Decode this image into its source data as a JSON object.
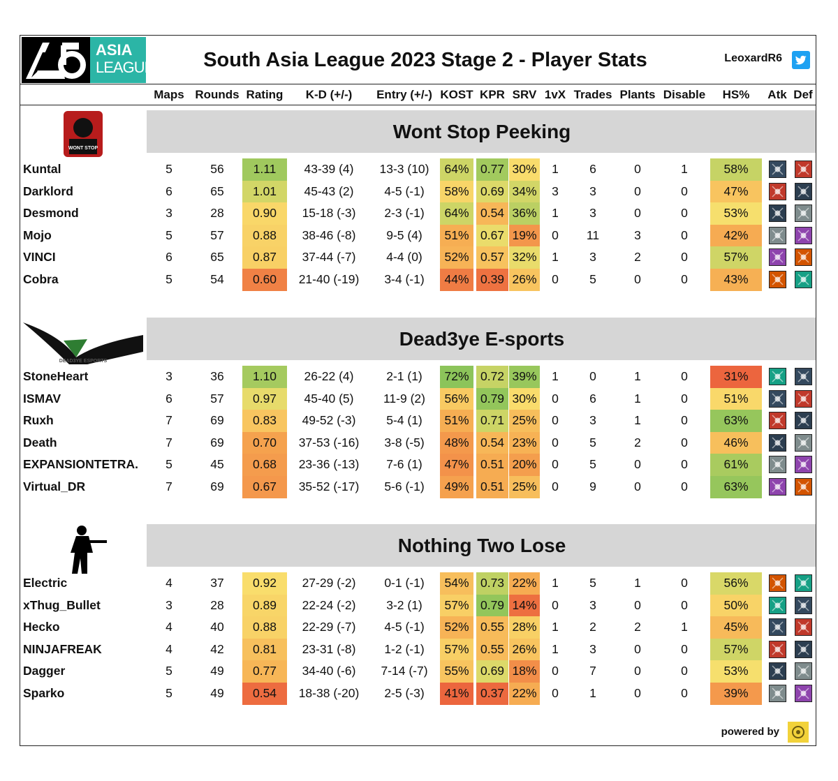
{
  "header": {
    "logo_line1": "ASIA",
    "logo_line2": "LEAGUE",
    "title": "South Asia League 2023 Stage 2 - Player Stats",
    "handle": "LeoxardR6"
  },
  "columns": [
    "Maps",
    "Rounds",
    "Rating",
    "K-D (+/-)",
    "Entry (+/-)",
    "KOST",
    "KPR",
    "SRV",
    "1vX",
    "Trades",
    "Plants",
    "Disable",
    "HS%",
    "Atk",
    "Def"
  ],
  "colors": {
    "banner": "#d6d6d6",
    "accent": "#2bb5a6",
    "twitter": "#1da1f2"
  },
  "teams": [
    {
      "name": "Wont Stop Peeking",
      "logo_text": "WONT STOP",
      "players": [
        {
          "name": "Kuntal",
          "maps": "5",
          "rounds": "56",
          "rating": "1.11",
          "kd": "43-39 (4)",
          "entry": "13-3 (10)",
          "kost": "64%",
          "kpr": "0.77",
          "srv": "30%",
          "onevx": "1",
          "trades": "6",
          "plants": "0",
          "disable": "1",
          "hs": "58%",
          "atk_icon": "attacker-operator-icon",
          "def_icon": "defender-operator-icon"
        },
        {
          "name": "Darklord",
          "maps": "6",
          "rounds": "65",
          "rating": "1.01",
          "kd": "45-43 (2)",
          "entry": "4-5 (-1)",
          "kost": "58%",
          "kpr": "0.69",
          "srv": "34%",
          "onevx": "3",
          "trades": "3",
          "plants": "0",
          "disable": "0",
          "hs": "47%",
          "atk_icon": "attacker-operator-icon",
          "def_icon": "defender-operator-icon"
        },
        {
          "name": "Desmond",
          "maps": "3",
          "rounds": "28",
          "rating": "0.90",
          "kd": "15-18 (-3)",
          "entry": "2-3 (-1)",
          "kost": "64%",
          "kpr": "0.54",
          "srv": "36%",
          "onevx": "1",
          "trades": "3",
          "plants": "0",
          "disable": "0",
          "hs": "53%",
          "atk_icon": "attacker-operator-icon",
          "def_icon": "defender-operator-icon"
        },
        {
          "name": "Mojo",
          "maps": "5",
          "rounds": "57",
          "rating": "0.88",
          "kd": "38-46 (-8)",
          "entry": "9-5 (4)",
          "kost": "51%",
          "kpr": "0.67",
          "srv": "19%",
          "onevx": "0",
          "trades": "11",
          "plants": "3",
          "disable": "0",
          "hs": "42%",
          "atk_icon": "attacker-operator-icon",
          "def_icon": "defender-operator-icon"
        },
        {
          "name": "VINCI",
          "maps": "6",
          "rounds": "65",
          "rating": "0.87",
          "kd": "37-44 (-7)",
          "entry": "4-4 (0)",
          "kost": "52%",
          "kpr": "0.57",
          "srv": "32%",
          "onevx": "1",
          "trades": "3",
          "plants": "2",
          "disable": "0",
          "hs": "57%",
          "atk_icon": "attacker-operator-icon",
          "def_icon": "defender-operator-icon"
        },
        {
          "name": "Cobra",
          "maps": "5",
          "rounds": "54",
          "rating": "0.60",
          "kd": "21-40 (-19)",
          "entry": "3-4 (-1)",
          "kost": "44%",
          "kpr": "0.39",
          "srv": "26%",
          "onevx": "0",
          "trades": "5",
          "plants": "0",
          "disable": "0",
          "hs": "43%",
          "atk_icon": "attacker-operator-icon",
          "def_icon": "defender-operator-icon"
        }
      ]
    },
    {
      "name": "Dead3ye E-sports",
      "logo_text": "DEAD3YE ESPORTS",
      "players": [
        {
          "name": "StoneHeart",
          "maps": "3",
          "rounds": "36",
          "rating": "1.10",
          "kd": "26-22 (4)",
          "entry": "2-1 (1)",
          "kost": "72%",
          "kpr": "0.72",
          "srv": "39%",
          "onevx": "1",
          "trades": "0",
          "plants": "1",
          "disable": "0",
          "hs": "31%",
          "atk_icon": "attacker-operator-icon",
          "def_icon": "defender-operator-icon"
        },
        {
          "name": "ISMAV",
          "maps": "6",
          "rounds": "57",
          "rating": "0.97",
          "kd": "45-40 (5)",
          "entry": "11-9 (2)",
          "kost": "56%",
          "kpr": "0.79",
          "srv": "30%",
          "onevx": "0",
          "trades": "6",
          "plants": "1",
          "disable": "0",
          "hs": "51%",
          "atk_icon": "attacker-operator-icon",
          "def_icon": "defender-operator-icon"
        },
        {
          "name": "Ruxh",
          "maps": "7",
          "rounds": "69",
          "rating": "0.83",
          "kd": "49-52 (-3)",
          "entry": "5-4 (1)",
          "kost": "51%",
          "kpr": "0.71",
          "srv": "25%",
          "onevx": "0",
          "trades": "3",
          "plants": "1",
          "disable": "0",
          "hs": "63%",
          "atk_icon": "attacker-operator-icon",
          "def_icon": "defender-operator-icon"
        },
        {
          "name": "Death",
          "maps": "7",
          "rounds": "69",
          "rating": "0.70",
          "kd": "37-53 (-16)",
          "entry": "3-8 (-5)",
          "kost": "48%",
          "kpr": "0.54",
          "srv": "23%",
          "onevx": "0",
          "trades": "5",
          "plants": "2",
          "disable": "0",
          "hs": "46%",
          "atk_icon": "attacker-operator-icon",
          "def_icon": "defender-operator-icon"
        },
        {
          "name": "EXPANSIONTETRA.",
          "maps": "5",
          "rounds": "45",
          "rating": "0.68",
          "kd": "23-36 (-13)",
          "entry": "7-6 (1)",
          "kost": "47%",
          "kpr": "0.51",
          "srv": "20%",
          "onevx": "0",
          "trades": "5",
          "plants": "0",
          "disable": "0",
          "hs": "61%",
          "atk_icon": "attacker-operator-icon",
          "def_icon": "defender-operator-icon"
        },
        {
          "name": "Virtual_DR",
          "maps": "7",
          "rounds": "69",
          "rating": "0.67",
          "kd": "35-52 (-17)",
          "entry": "5-6 (-1)",
          "kost": "49%",
          "kpr": "0.51",
          "srv": "25%",
          "onevx": "0",
          "trades": "9",
          "plants": "0",
          "disable": "0",
          "hs": "63%",
          "atk_icon": "attacker-operator-icon",
          "def_icon": "defender-operator-icon"
        }
      ]
    },
    {
      "name": "Nothing Two Lose",
      "logo_text": "",
      "players": [
        {
          "name": "Electric",
          "maps": "4",
          "rounds": "37",
          "rating": "0.92",
          "kd": "27-29 (-2)",
          "entry": "0-1 (-1)",
          "kost": "54%",
          "kpr": "0.73",
          "srv": "22%",
          "onevx": "1",
          "trades": "5",
          "plants": "1",
          "disable": "0",
          "hs": "56%",
          "atk_icon": "attacker-operator-icon",
          "def_icon": "defender-operator-icon"
        },
        {
          "name": "xThug_Bullet",
          "maps": "3",
          "rounds": "28",
          "rating": "0.89",
          "kd": "22-24 (-2)",
          "entry": "3-2 (1)",
          "kost": "57%",
          "kpr": "0.79",
          "srv": "14%",
          "onevx": "0",
          "trades": "3",
          "plants": "0",
          "disable": "0",
          "hs": "50%",
          "atk_icon": "attacker-operator-icon",
          "def_icon": "defender-operator-icon"
        },
        {
          "name": "Hecko",
          "maps": "4",
          "rounds": "40",
          "rating": "0.88",
          "kd": "22-29 (-7)",
          "entry": "4-5 (-1)",
          "kost": "52%",
          "kpr": "0.55",
          "srv": "28%",
          "onevx": "1",
          "trades": "2",
          "plants": "2",
          "disable": "1",
          "hs": "45%",
          "atk_icon": "attacker-operator-icon",
          "def_icon": "defender-operator-icon"
        },
        {
          "name": "NINJAFREAK",
          "maps": "4",
          "rounds": "42",
          "rating": "0.81",
          "kd": "23-31 (-8)",
          "entry": "1-2 (-1)",
          "kost": "57%",
          "kpr": "0.55",
          "srv": "26%",
          "onevx": "1",
          "trades": "3",
          "plants": "0",
          "disable": "0",
          "hs": "57%",
          "atk_icon": "attacker-operator-icon",
          "def_icon": "defender-operator-icon"
        },
        {
          "name": "Dagger",
          "maps": "5",
          "rounds": "49",
          "rating": "0.77",
          "kd": "34-40 (-6)",
          "entry": "7-14 (-7)",
          "kost": "55%",
          "kpr": "0.69",
          "srv": "18%",
          "onevx": "0",
          "trades": "7",
          "plants": "0",
          "disable": "0",
          "hs": "53%",
          "atk_icon": "attacker-operator-icon",
          "def_icon": "defender-operator-icon"
        },
        {
          "name": "Sparko",
          "maps": "5",
          "rounds": "49",
          "rating": "0.54",
          "kd": "18-38 (-20)",
          "entry": "2-5 (-3)",
          "kost": "41%",
          "kpr": "0.37",
          "srv": "22%",
          "onevx": "0",
          "trades": "1",
          "plants": "0",
          "disable": "0",
          "hs": "39%",
          "atk_icon": "attacker-operator-icon",
          "def_icon": "defender-operator-icon"
        }
      ]
    }
  ],
  "footer": {
    "powered_by": "powered by"
  }
}
